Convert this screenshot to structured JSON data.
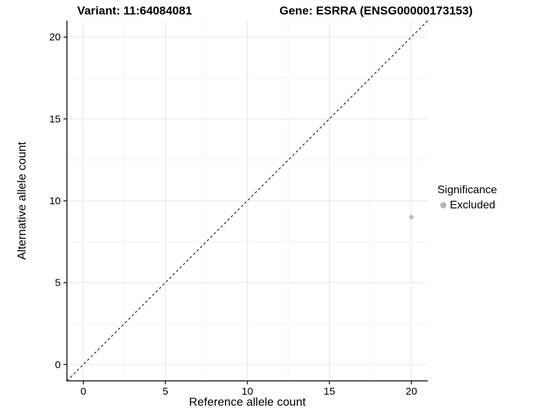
{
  "chart_data": {
    "type": "scatter",
    "titles": [
      "Variant: 11:64084081",
      "Gene: ESRRA (ENSG00000173153)"
    ],
    "xlabel": "Reference allele count",
    "ylabel": "Alternative allele count",
    "xlim": [
      -1,
      21
    ],
    "ylim": [
      -1,
      21
    ],
    "xticks": [
      0,
      5,
      10,
      15,
      20
    ],
    "yticks": [
      0,
      5,
      10,
      15,
      20
    ],
    "minor_xticks": [
      2.5,
      7.5,
      12.5,
      17.5
    ],
    "minor_yticks": [
      2.5,
      7.5,
      12.5,
      17.5
    ],
    "grid": "major+minor",
    "reference_line": {
      "type": "identity",
      "style": "dashed",
      "from": [
        -1,
        -1
      ],
      "to": [
        21,
        21
      ]
    },
    "series": [
      {
        "name": "Excluded",
        "color": "#bcbcbc",
        "points": [
          {
            "x": 20,
            "y": 9
          }
        ]
      }
    ],
    "legend": {
      "position": "right",
      "title": "Significance",
      "items": [
        {
          "label": "Excluded",
          "color": "#b5b5b5"
        }
      ]
    }
  },
  "colors": {
    "background": "#ffffff",
    "grid_major": "#e5e5e5",
    "grid_minor": "#f2f2f2",
    "axis": "#1a1a1a",
    "text": "#000000",
    "reference_line": "#1a1a1a"
  }
}
